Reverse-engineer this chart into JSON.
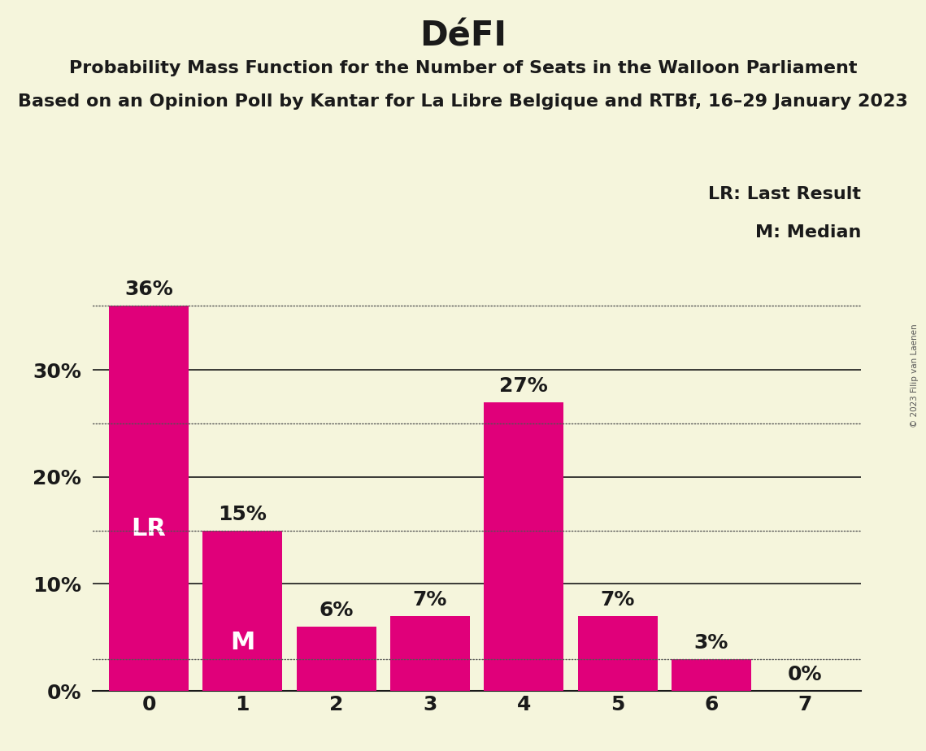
{
  "title": "DéFI",
  "subtitle1": "Probability Mass Function for the Number of Seats in the Walloon Parliament",
  "subtitle2": "Based on an Opinion Poll by Kantar for La Libre Belgique and RTBf, 16–29 January 2023",
  "copyright": "© 2023 Filip van Laenen",
  "categories": [
    0,
    1,
    2,
    3,
    4,
    5,
    6,
    7
  ],
  "values": [
    36,
    15,
    6,
    7,
    27,
    7,
    3,
    0
  ],
  "bar_color": "#E0007A",
  "background_color": "#F5F5DC",
  "ylim": [
    0,
    40
  ],
  "yticks": [
    0,
    10,
    20,
    30
  ],
  "ytick_labels": [
    "0%",
    "10%",
    "20%",
    "30%"
  ],
  "lr_seat": 0,
  "lr_value": 36,
  "median_seat": 1,
  "median_value": 15,
  "dotted_lines": [
    36,
    25,
    15,
    3
  ],
  "legend_lr": "LR: Last Result",
  "legend_m": "M: Median",
  "lr_label": "LR",
  "m_label": "M",
  "lr_label_color": "#FFFFFF",
  "m_label_color": "#FFFFFF",
  "bar_label_color_outside": "#1A1A1A",
  "dotted_line_color": "#555555",
  "solid_line_color": "#1A1A1A",
  "title_fontsize": 30,
  "subtitle_fontsize": 16,
  "axis_tick_fontsize": 18,
  "bar_label_fontsize": 18,
  "legend_fontsize": 16,
  "lr_m_label_fontsize": 22
}
